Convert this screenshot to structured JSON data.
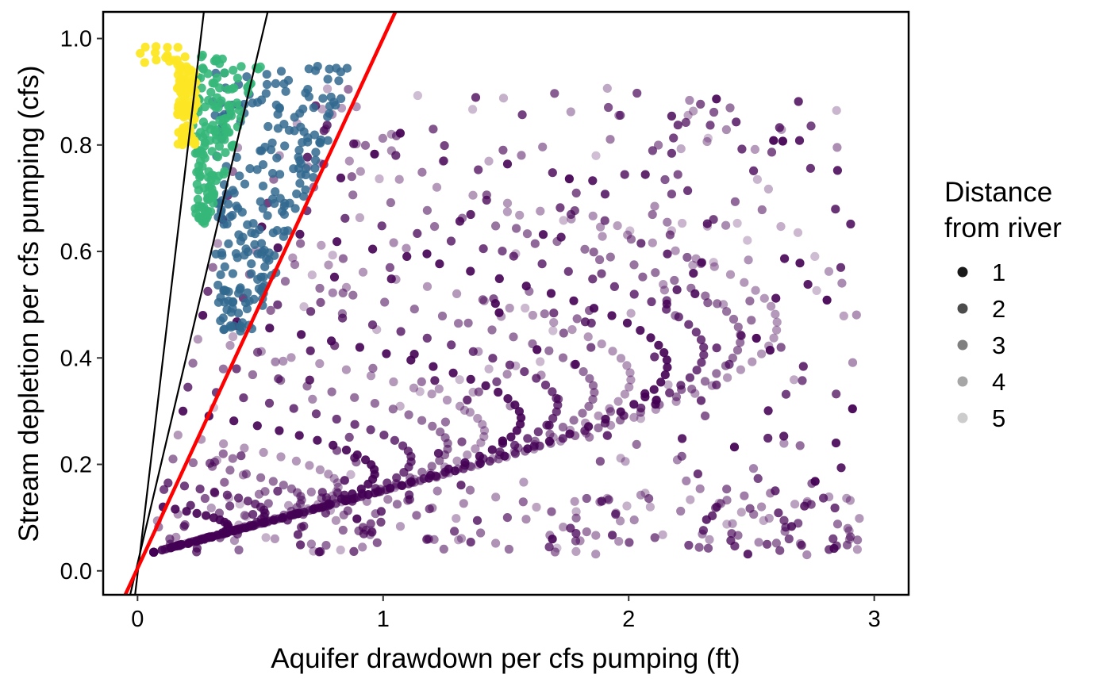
{
  "chart_data": {
    "type": "scatter",
    "title": "",
    "xlabel": "Aquifer drawdown per cfs pumping (ft)",
    "ylabel": "Stream depletion per cfs pumping (cfs)",
    "xlim": [
      -0.14,
      3.14
    ],
    "ylim": [
      -0.045,
      1.05
    ],
    "x_ticks": [
      0,
      1,
      2,
      3
    ],
    "x_tick_labels": [
      "0",
      "1",
      "2",
      "3"
    ],
    "y_ticks": [
      0.0,
      0.2,
      0.4,
      0.6,
      0.8,
      1.0
    ],
    "y_tick_labels": [
      "0.0",
      "0.2",
      "0.4",
      "0.6",
      "0.8",
      "1.0"
    ],
    "grid": false,
    "legend": {
      "title_lines": [
        "Distance",
        "from river"
      ],
      "position": "right",
      "entries": [
        {
          "label": "1",
          "opacity": 0.9
        },
        {
          "label": "2",
          "opacity": 0.7
        },
        {
          "label": "3",
          "opacity": 0.5
        },
        {
          "label": "4",
          "opacity": 0.35
        },
        {
          "label": "5",
          "opacity": 0.2
        }
      ]
    },
    "color_groups": [
      {
        "color": "#FDE725",
        "region": "x 0.0–0.25, y 0.80–0.99"
      },
      {
        "color": "#35B779",
        "region": "x 0.2–0.5, y 0.65–0.97"
      },
      {
        "color": "#31688E",
        "region": "x 0.3–0.95, y 0.45–0.95"
      },
      {
        "color": "#440154",
        "region": "x 0.05–3.0, y 0.03–0.92"
      }
    ],
    "reference_lines": [
      {
        "name": "line_1",
        "color": "#000000",
        "points": [
          [
            -0.01,
            -0.045
          ],
          [
            0.27,
            1.05
          ]
        ]
      },
      {
        "name": "line_2",
        "color": "#000000",
        "points": [
          [
            -0.03,
            -0.045
          ],
          [
            0.53,
            1.05
          ]
        ]
      },
      {
        "name": "line_3",
        "color": "#FF0000",
        "points": [
          [
            -0.05,
            -0.045
          ],
          [
            1.05,
            1.05
          ]
        ]
      }
    ]
  }
}
